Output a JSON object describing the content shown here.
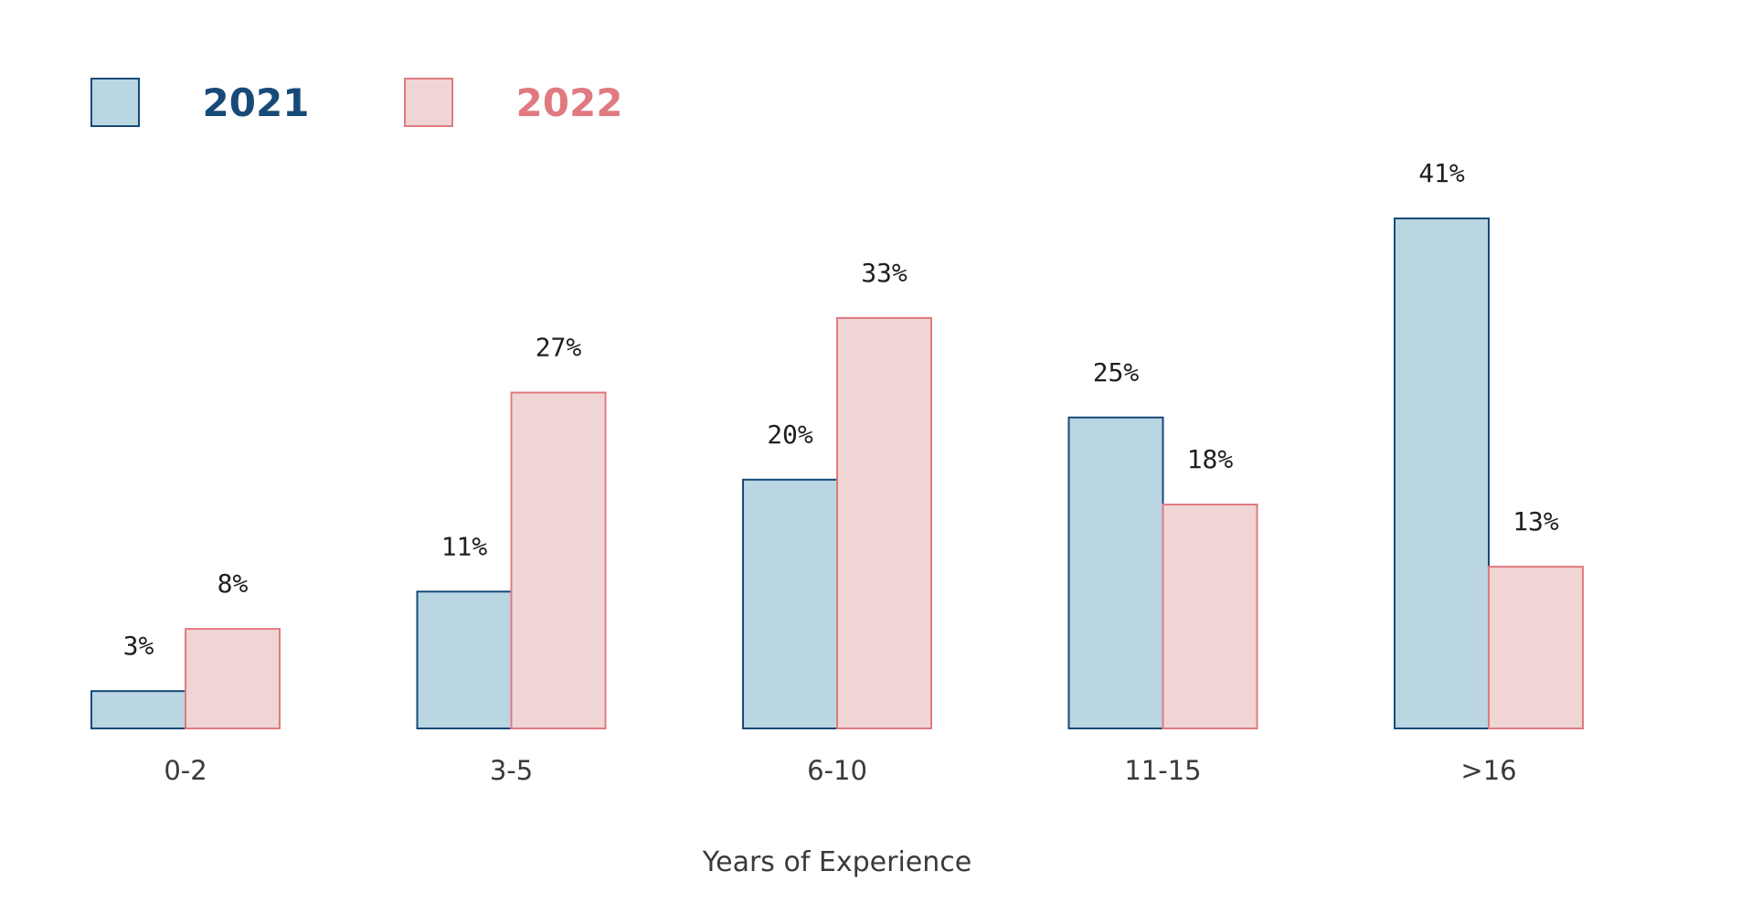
{
  "chart_data": {
    "type": "bar",
    "categories": [
      "0-2",
      "3-5",
      "6-10",
      "11-15",
      ">16"
    ],
    "series": [
      {
        "name": "2021",
        "values": [
          3,
          11,
          20,
          25,
          41
        ],
        "labels": [
          "3%",
          "11%",
          "20%",
          "25%",
          "41%"
        ],
        "fill": "#bad6e3",
        "stroke": "#174a78",
        "label_color": "#174a78"
      },
      {
        "name": "2022",
        "values": [
          8,
          27,
          33,
          18,
          13
        ],
        "labels": [
          "8%",
          "27%",
          "33%",
          "18%",
          "13%"
        ],
        "fill": "#efd6d5",
        "stroke": "#e07a80",
        "label_color": "#e07a80"
      }
    ],
    "xlabel": "Years of Experience",
    "ylabel": "",
    "ylim": [
      0,
      41
    ],
    "grid": false,
    "legend_position": "top-left"
  }
}
